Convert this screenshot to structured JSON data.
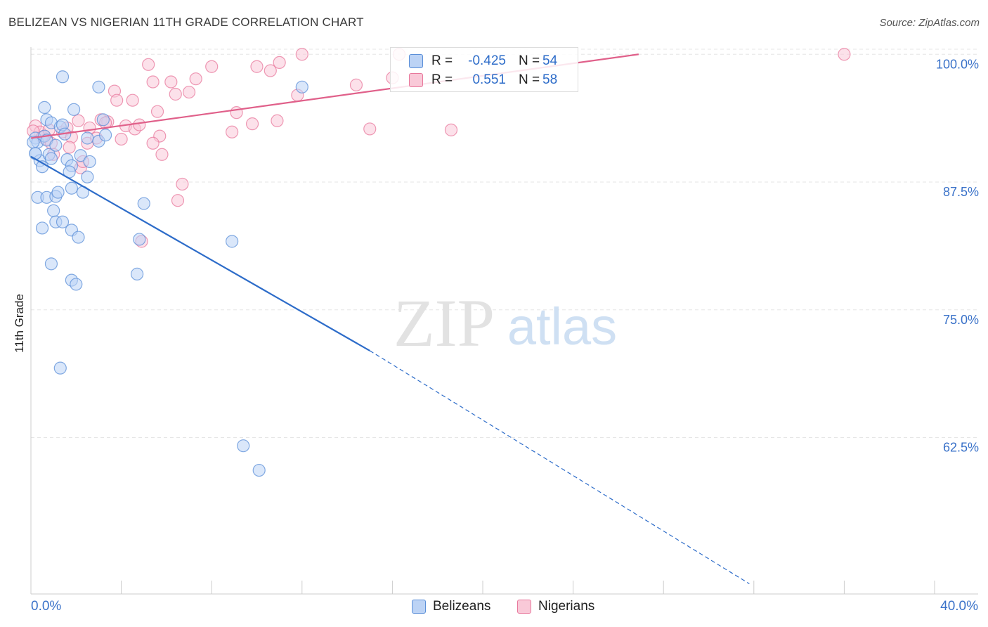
{
  "title": "BELIZEAN VS NIGERIAN 11TH GRADE CORRELATION CHART",
  "source": "Source: ZipAtlas.com",
  "watermark": {
    "zip": "ZIP",
    "atlas": "atlas"
  },
  "legend_stats": [
    {
      "r_label": "R =",
      "r_value": "-0.425",
      "n_label": "N =",
      "n_value": "54",
      "color": "#5b8fd8",
      "fill": "#bcd3f5"
    },
    {
      "r_label": "R =",
      "r_value": "0.551",
      "n_label": "N =",
      "n_value": "58",
      "color": "#e8789c",
      "fill": "#f9c9d8"
    }
  ],
  "chart_data": {
    "type": "scatter",
    "title": "BELIZEAN VS NIGERIAN 11TH GRADE CORRELATION CHART",
    "xlabel": "",
    "ylabel": "11th Grade",
    "xlim": [
      0,
      40
    ],
    "ylim": [
      47.2,
      100.5
    ],
    "x_tick_labels": [
      "0.0%",
      "40.0%"
    ],
    "y_ticks": [
      62.5,
      75.0,
      87.5,
      100.0
    ],
    "y_tick_labels": [
      "62.5%",
      "75.0%",
      "87.5%",
      "100.0%"
    ],
    "grid": "horizontal dashed",
    "legend_position": "bottom",
    "series": [
      {
        "name": "Belizeans",
        "color": "#5b8fd8",
        "fill": "#bcd3f5",
        "points": [
          [
            0.2,
            91.8
          ],
          [
            0.3,
            91.4
          ],
          [
            0.2,
            90.3
          ],
          [
            0.4,
            89.6
          ],
          [
            0.5,
            89.0
          ],
          [
            0.6,
            92.0
          ],
          [
            0.7,
            91.6
          ],
          [
            0.8,
            90.2
          ],
          [
            0.9,
            89.8
          ],
          [
            0.6,
            94.8
          ],
          [
            0.7,
            93.6
          ],
          [
            0.9,
            93.3
          ],
          [
            1.1,
            91.1
          ],
          [
            1.3,
            92.9
          ],
          [
            1.4,
            93.1
          ],
          [
            1.6,
            89.7
          ],
          [
            1.8,
            89.1
          ],
          [
            2.2,
            90.1
          ],
          [
            2.6,
            89.5
          ],
          [
            1.5,
            92.2
          ],
          [
            1.9,
            94.6
          ],
          [
            2.5,
            91.8
          ],
          [
            3.0,
            91.5
          ],
          [
            3.3,
            92.1
          ],
          [
            3.2,
            93.6
          ],
          [
            1.4,
            97.8
          ],
          [
            3.0,
            96.8
          ],
          [
            0.3,
            86.0
          ],
          [
            0.7,
            86.0
          ],
          [
            1.1,
            86.1
          ],
          [
            1.2,
            86.5
          ],
          [
            1.7,
            88.5
          ],
          [
            1.8,
            86.9
          ],
          [
            2.3,
            86.5
          ],
          [
            2.5,
            88.0
          ],
          [
            0.5,
            83.0
          ],
          [
            1.0,
            84.7
          ],
          [
            1.1,
            83.6
          ],
          [
            1.4,
            83.6
          ],
          [
            1.8,
            82.8
          ],
          [
            2.1,
            82.1
          ],
          [
            0.9,
            79.5
          ],
          [
            1.8,
            77.9
          ],
          [
            2.0,
            77.5
          ],
          [
            4.8,
            81.9
          ],
          [
            5.0,
            85.4
          ],
          [
            4.7,
            78.5
          ],
          [
            8.9,
            81.7
          ],
          [
            12.0,
            96.8
          ],
          [
            1.3,
            69.3
          ],
          [
            9.4,
            61.7
          ],
          [
            10.1,
            59.3
          ],
          [
            0.1,
            91.4
          ],
          [
            0.2,
            90.3
          ]
        ]
      },
      {
        "name": "Nigerians",
        "color": "#e8789c",
        "fill": "#f9c9d8",
        "points": [
          [
            0.2,
            93.0
          ],
          [
            0.4,
            92.4
          ],
          [
            0.6,
            92.0
          ],
          [
            0.7,
            91.7
          ],
          [
            0.9,
            91.3
          ],
          [
            1.0,
            90.2
          ],
          [
            1.4,
            92.4
          ],
          [
            1.6,
            92.8
          ],
          [
            1.8,
            91.9
          ],
          [
            1.7,
            90.9
          ],
          [
            2.2,
            88.9
          ],
          [
            2.3,
            89.5
          ],
          [
            2.1,
            93.5
          ],
          [
            2.6,
            92.8
          ],
          [
            2.5,
            91.3
          ],
          [
            2.9,
            91.8
          ],
          [
            3.1,
            93.6
          ],
          [
            3.4,
            93.4
          ],
          [
            3.7,
            96.4
          ],
          [
            3.8,
            95.5
          ],
          [
            4.2,
            93.0
          ],
          [
            4.0,
            91.7
          ],
          [
            4.5,
            95.5
          ],
          [
            4.6,
            92.7
          ],
          [
            4.8,
            93.1
          ],
          [
            5.2,
            99.0
          ],
          [
            5.4,
            97.3
          ],
          [
            5.6,
            94.4
          ],
          [
            5.7,
            92.0
          ],
          [
            5.4,
            91.3
          ],
          [
            5.8,
            90.2
          ],
          [
            6.2,
            97.3
          ],
          [
            6.4,
            96.1
          ],
          [
            7.0,
            96.3
          ],
          [
            7.3,
            97.6
          ],
          [
            6.7,
            87.3
          ],
          [
            6.5,
            85.7
          ],
          [
            8.0,
            98.8
          ],
          [
            9.1,
            94.3
          ],
          [
            8.9,
            92.4
          ],
          [
            9.8,
            93.2
          ],
          [
            10.0,
            98.8
          ],
          [
            10.6,
            98.4
          ],
          [
            11.0,
            99.2
          ],
          [
            10.9,
            93.5
          ],
          [
            11.8,
            96.0
          ],
          [
            12.0,
            100.0
          ],
          [
            14.4,
            97.0
          ],
          [
            15.0,
            92.7
          ],
          [
            16.0,
            97.7
          ],
          [
            16.3,
            100.0
          ],
          [
            18.6,
            92.6
          ],
          [
            36.0,
            100.0
          ],
          [
            4.9,
            81.7
          ],
          [
            0.1,
            92.5
          ],
          [
            0.5,
            91.9
          ],
          [
            0.8,
            92.6
          ],
          [
            3.3,
            93.3
          ]
        ]
      }
    ],
    "trend_lines": [
      {
        "series": "Belizeans",
        "solid": [
          [
            0.0,
            90.0
          ],
          [
            15.0,
            71.0
          ]
        ],
        "dashed": [
          [
            15.0,
            71.0
          ],
          [
            31.8,
            48.2
          ]
        ]
      },
      {
        "series": "Nigerians",
        "solid": [
          [
            0.0,
            91.8
          ],
          [
            26.9,
            100.0
          ]
        ]
      }
    ]
  }
}
